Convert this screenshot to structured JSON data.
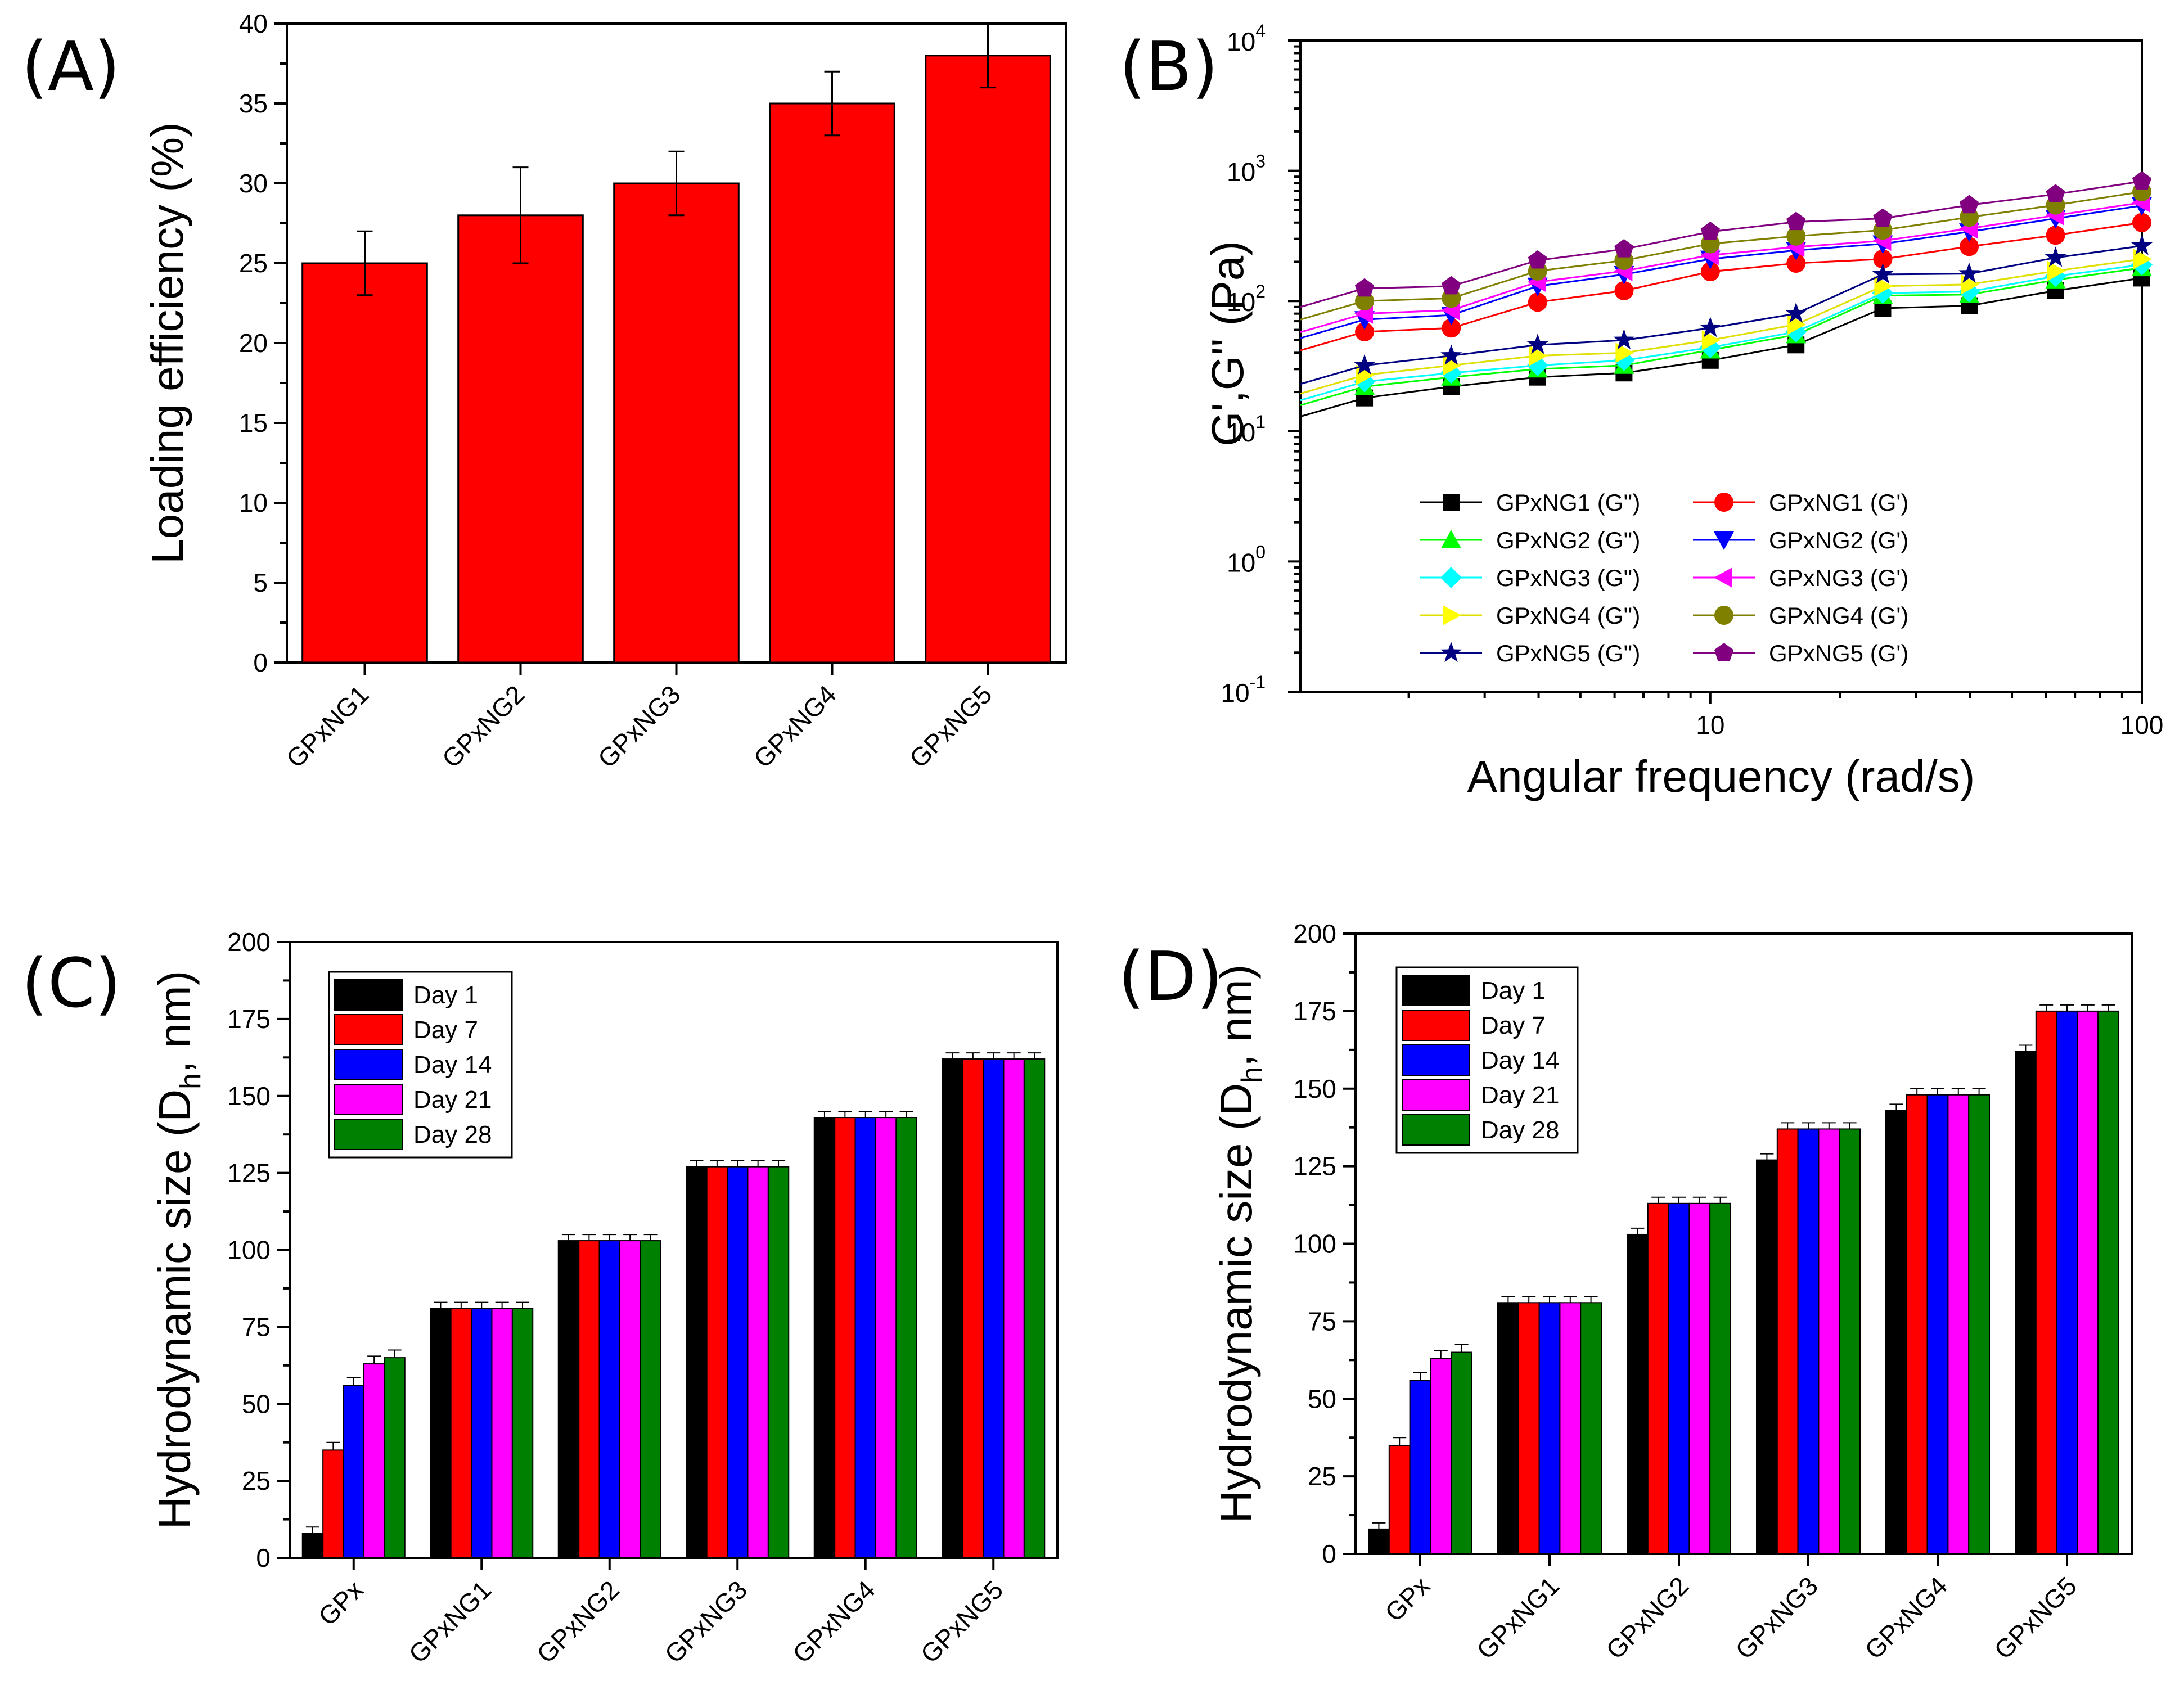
{
  "chart_data": [
    {
      "panel": "(A)",
      "type": "bar",
      "categories": [
        "GPxNG1",
        "GPxNG2",
        "GPxNG3",
        "GPxNG4",
        "GPxNG5"
      ],
      "values": [
        25,
        28,
        30,
        35,
        38
      ],
      "errors": [
        2,
        3,
        2,
        2,
        2
      ],
      "bar_color": "#ff0000",
      "ylabel": "Loading efficiency (%)",
      "xlabel": "",
      "ylim": [
        0,
        40
      ],
      "yticks": [
        "0",
        "5",
        "10",
        "15",
        "20",
        "25",
        "30",
        "35",
        "40"
      ]
    },
    {
      "panel": "(B)",
      "type": "line",
      "scale": "log-log",
      "xlabel": "Angular frequency (rad/s)",
      "ylabel": "G',G'' (Pa)",
      "xlim": [
        1,
        100
      ],
      "ylim": [
        0.1,
        10000
      ],
      "xtick_labels": [
        "10",
        "100"
      ],
      "ytick_labels": [
        "10",
        "10",
        "10",
        "10",
        "10",
        "10"
      ],
      "ytick_exponents": [
        "-1",
        "0",
        "1",
        "2",
        "3",
        "4"
      ],
      "x": [
        1.58,
        2.51,
        3.98,
        6.31,
        10,
        15.8,
        25.1,
        39.8,
        63.1,
        100
      ],
      "series": [
        {
          "name": "GPxNG1 (G'')",
          "marker": "square",
          "color": "#000000",
          "values": [
            18,
            22,
            26,
            28,
            35,
            46,
            88,
            92,
            120,
            150
          ]
        },
        {
          "name": "GPxNG1 (G')",
          "marker": "circle",
          "color": "#ff0000",
          "values": [
            58,
            62,
            98,
            120,
            168,
            195,
            210,
            262,
            320,
            400
          ]
        },
        {
          "name": "GPxNG2 (G'')",
          "marker": "triangle-up",
          "color": "#00ff00",
          "values": [
            22,
            26,
            30,
            32,
            42,
            55,
            110,
            112,
            145,
            180
          ]
        },
        {
          "name": "GPxNG2 (G')",
          "marker": "triangle-down",
          "color": "#0000ff",
          "values": [
            72,
            78,
            130,
            160,
            210,
            245,
            275,
            340,
            430,
            540
          ]
        },
        {
          "name": "GPxNG3 (G'')",
          "marker": "diamond",
          "color": "#00ffff",
          "values": [
            24,
            28,
            32,
            35,
            44,
            58,
            115,
            118,
            155,
            190
          ]
        },
        {
          "name": "GPxNG3 (G')",
          "marker": "triangle-left",
          "color": "#ff00ff",
          "values": [
            80,
            85,
            140,
            170,
            225,
            260,
            290,
            360,
            455,
            570
          ]
        },
        {
          "name": "GPxNG4 (G'')",
          "marker": "triangle-right",
          "color": "#ffff00",
          "values": [
            27,
            32,
            38,
            40,
            50,
            66,
            130,
            134,
            170,
            210
          ]
        },
        {
          "name": "GPxNG4 (G')",
          "marker": "circle",
          "color": "#808000",
          "values": [
            100,
            105,
            170,
            205,
            275,
            315,
            350,
            440,
            545,
            690
          ]
        },
        {
          "name": "GPxNG5 (G'')",
          "marker": "star",
          "color": "#000080",
          "values": [
            32,
            38,
            46,
            50,
            62,
            80,
            160,
            162,
            215,
            265
          ]
        },
        {
          "name": "GPxNG5 (G')",
          "marker": "pentagon",
          "color": "#800080",
          "values": [
            125,
            130,
            205,
            250,
            340,
            405,
            430,
            545,
            660,
            830
          ]
        }
      ]
    },
    {
      "panel": "(C)",
      "type": "bar",
      "categories": [
        "GPx",
        "GPxNG1",
        "GPxNG2",
        "GPxNG3",
        "GPxNG4",
        "GPxNG5"
      ],
      "ylabel": "Hydrodynamic size (D",
      "ylabel_sub": "h",
      "ylabel_tail": ", nm)",
      "ylim": [
        0,
        200
      ],
      "yticks": [
        "0",
        "25",
        "50",
        "75",
        "100",
        "125",
        "150",
        "175",
        "200"
      ],
      "series": [
        {
          "name": "Day 1",
          "color": "#000000",
          "values": [
            8,
            81,
            103,
            127,
            143,
            162
          ]
        },
        {
          "name": "Day 7",
          "color": "#ff0000",
          "values": [
            35,
            81,
            103,
            127,
            143,
            162
          ]
        },
        {
          "name": "Day 14",
          "color": "#0000ff",
          "values": [
            56,
            81,
            103,
            127,
            143,
            162
          ]
        },
        {
          "name": "Day 21",
          "color": "#ff00ff",
          "values": [
            63,
            81,
            103,
            127,
            143,
            162
          ]
        },
        {
          "name": "Day 28",
          "color": "#008000",
          "values": [
            65,
            81,
            103,
            127,
            143,
            162
          ]
        }
      ]
    },
    {
      "panel": "(D)",
      "type": "bar",
      "categories": [
        "GPx",
        "GPxNG1",
        "GPxNG2",
        "GPxNG3",
        "GPxNG4",
        "GPxNG5"
      ],
      "ylabel": "Hydrodynamic size (D",
      "ylabel_sub": "h",
      "ylabel_tail": ", nm)",
      "ylim": [
        0,
        200
      ],
      "yticks": [
        "0",
        "25",
        "50",
        "75",
        "100",
        "125",
        "150",
        "175",
        "200"
      ],
      "series": [
        {
          "name": "Day 1",
          "color": "#000000",
          "values": [
            8,
            81,
            103,
            127,
            143,
            162
          ]
        },
        {
          "name": "Day 7",
          "color": "#ff0000",
          "values": [
            35,
            81,
            113,
            137,
            148,
            175
          ]
        },
        {
          "name": "Day 14",
          "color": "#0000ff",
          "values": [
            56,
            81,
            113,
            137,
            148,
            175
          ]
        },
        {
          "name": "Day 21",
          "color": "#ff00ff",
          "values": [
            63,
            81,
            113,
            137,
            148,
            175
          ]
        },
        {
          "name": "Day 28",
          "color": "#008000",
          "values": [
            65,
            81,
            113,
            137,
            148,
            175
          ]
        }
      ]
    }
  ]
}
